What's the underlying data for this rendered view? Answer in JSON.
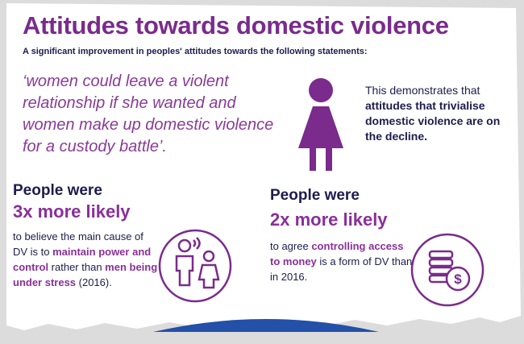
{
  "title": "Attitudes towards domestic violence",
  "subtitle": "A significant improvement in peoples' attitudes towards the following statements:",
  "quote": "‘women could leave a violent relationship if she wanted and women make up domestic violence for a custody battle’.",
  "note": [
    "This demonstrates that ",
    "attitudes that trivialise domestic violence are on the decline",
    "."
  ],
  "left": {
    "heading": "People were",
    "highlight": "3x more likely",
    "body": [
      "to believe the main cause of DV is to ",
      "maintain power and control",
      " rather than ",
      "men being under stress",
      " (2016)."
    ]
  },
  "right": {
    "heading": "People were",
    "highlight": "2x more likely",
    "body": [
      "to agree ",
      "controlling access to money",
      " is a form of DV than in 2016."
    ]
  }
}
